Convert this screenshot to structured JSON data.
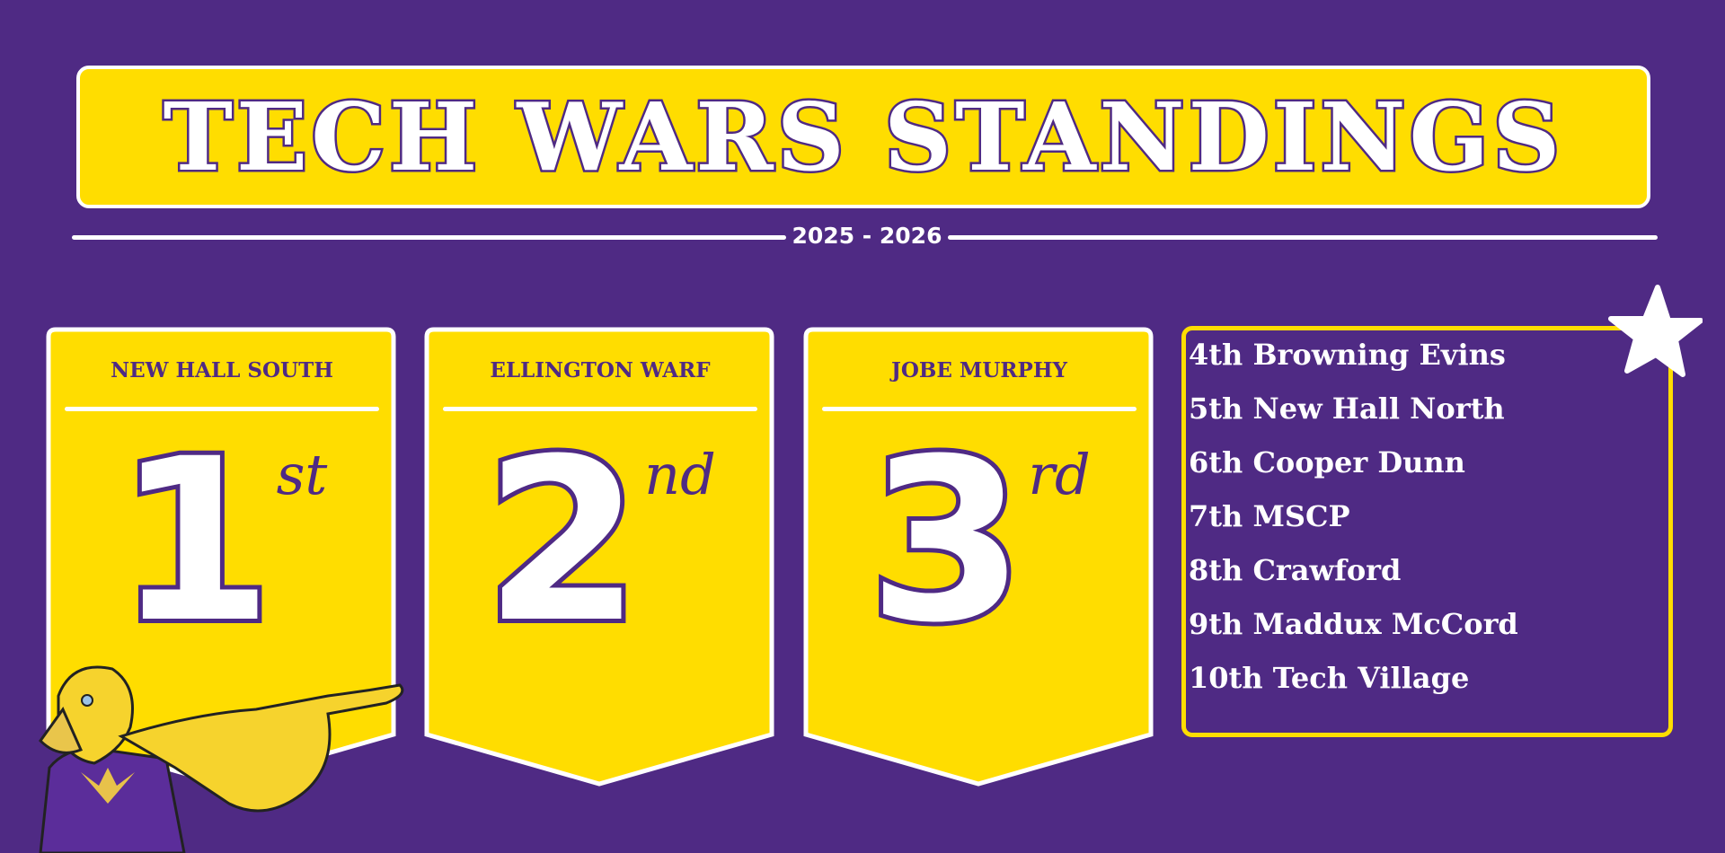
{
  "header": {
    "title": "TECH WARS STANDINGS",
    "season": "2025 - 2026"
  },
  "podium": [
    {
      "name": "NEW HALL SOUTH",
      "place_number": "1",
      "place_suffix": "st"
    },
    {
      "name": "ELLINGTON WARF",
      "place_number": "2",
      "place_suffix": "nd"
    },
    {
      "name": "JOBE MURPHY",
      "place_number": "3",
      "place_suffix": "rd"
    }
  ],
  "rankings": [
    "4th Browning Evins",
    "5th New Hall North",
    "6th Cooper Dunn",
    "7th MSCP",
    "8th Crawford",
    "9th Maddux McCord",
    "10th Tech Village"
  ],
  "icons": {
    "star": "star-icon",
    "mascot": "eagle-mascot"
  },
  "colors": {
    "background": "#4f2a84",
    "accent": "#ffdd00",
    "text": "#ffffff"
  }
}
